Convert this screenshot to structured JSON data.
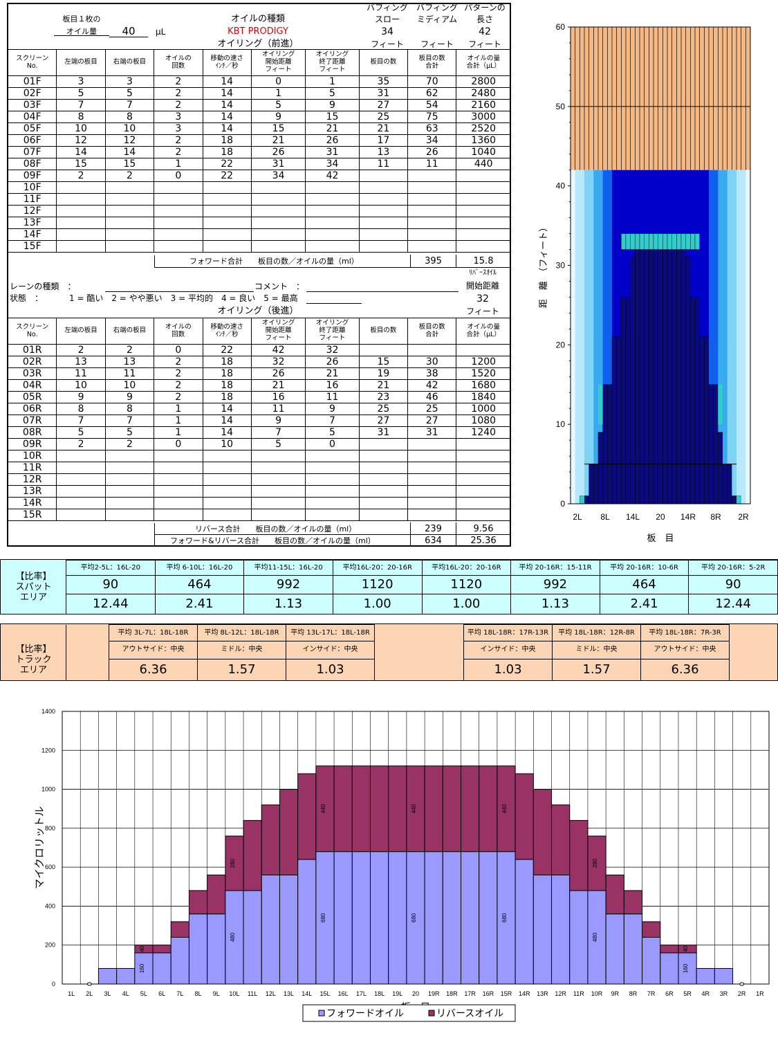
{
  "header": {
    "board_oil_label_1": "板目１枚の",
    "board_oil_label_2": "オイル量",
    "board_oil_value": "40",
    "board_oil_unit": "μL",
    "oil_type_label": "オイルの種類",
    "oil_type_value": "KBT PRODIGY",
    "forward_title": "オイリング（前進）",
    "buff_slow_1": "バフィング",
    "buff_slow_2": "スロー",
    "buff_slow_value": "34",
    "buff_slow_unit": "フィート",
    "buff_med_1": "バフィング",
    "buff_med_2": "ミディアム",
    "buff_med_unit": "フィート",
    "pat_len_1": "パターンの",
    "pat_len_2": "長さ",
    "pat_len_value": "42",
    "pat_len_unit": "フィート"
  },
  "col_headers": [
    "スクリーン No.",
    "左端の板目",
    "右端の板目",
    "オイルの 回数",
    "移動の速さ ｲﾝﾁ／秒",
    "オイリング 開始距離 フィート",
    "オイリング 終了距離 フィート",
    "板目の数",
    "板目の数 合計",
    "オイルの量 合計（μL）"
  ],
  "forward_rows": [
    [
      "01F",
      "3",
      "3",
      "2",
      "14",
      "0",
      "1",
      "35",
      "70",
      "2800"
    ],
    [
      "02F",
      "5",
      "5",
      "2",
      "14",
      "1",
      "5",
      "31",
      "62",
      "2480"
    ],
    [
      "03F",
      "7",
      "7",
      "2",
      "14",
      "5",
      "9",
      "27",
      "54",
      "2160"
    ],
    [
      "04F",
      "8",
      "8",
      "3",
      "14",
      "9",
      "15",
      "25",
      "75",
      "3000"
    ],
    [
      "05F",
      "10",
      "10",
      "3",
      "14",
      "15",
      "21",
      "21",
      "63",
      "2520"
    ],
    [
      "06F",
      "12",
      "12",
      "2",
      "18",
      "21",
      "26",
      "17",
      "34",
      "1360"
    ],
    [
      "07F",
      "14",
      "14",
      "2",
      "18",
      "26",
      "31",
      "13",
      "26",
      "1040"
    ],
    [
      "08F",
      "15",
      "15",
      "1",
      "22",
      "31",
      "34",
      "11",
      "11",
      "440"
    ],
    [
      "09F",
      "2",
      "2",
      "0",
      "22",
      "34",
      "42",
      "",
      "",
      ""
    ],
    [
      "10F",
      "",
      "",
      "",
      "",
      "",
      "",
      "",
      "",
      ""
    ],
    [
      "11F",
      "",
      "",
      "",
      "",
      "",
      "",
      "",
      "",
      ""
    ],
    [
      "12F",
      "",
      "",
      "",
      "",
      "",
      "",
      "",
      "",
      ""
    ],
    [
      "13F",
      "",
      "",
      "",
      "",
      "",
      "",
      "",
      "",
      ""
    ],
    [
      "14F",
      "",
      "",
      "",
      "",
      "",
      "",
      "",
      "",
      ""
    ],
    [
      "15F",
      "",
      "",
      "",
      "",
      "",
      "",
      "",
      "",
      ""
    ]
  ],
  "forward_total": {
    "label": "フォワード合計　　板目の数／オイルの量（ml）",
    "boards": "395",
    "oil": "15.8"
  },
  "middle": {
    "reverse_start_1": "ﾘﾊﾞｰｽｵｲﾙ",
    "reverse_start_2": "開始距離",
    "reverse_start_value": "32",
    "reverse_start_unit": "フィート",
    "lane_type_label": "レーンの種類　：",
    "comment_label": "コメント　：",
    "condition_label": "状態　：",
    "condition_scale": "1 = 酷い　2 = やや悪い　3 = 平均的　4 = 良い　5 = 最高",
    "reverse_title": "オイリング（後進）"
  },
  "reverse_rows": [
    [
      "01R",
      "2",
      "2",
      "0",
      "22",
      "42",
      "32",
      "",
      "",
      ""
    ],
    [
      "02R",
      "13",
      "13",
      "2",
      "18",
      "32",
      "26",
      "15",
      "30",
      "1200"
    ],
    [
      "03R",
      "11",
      "11",
      "2",
      "18",
      "26",
      "21",
      "19",
      "38",
      "1520"
    ],
    [
      "04R",
      "10",
      "10",
      "2",
      "18",
      "21",
      "16",
      "21",
      "42",
      "1680"
    ],
    [
      "05R",
      "9",
      "9",
      "2",
      "18",
      "16",
      "11",
      "23",
      "46",
      "1840"
    ],
    [
      "06R",
      "8",
      "8",
      "1",
      "14",
      "11",
      "9",
      "25",
      "25",
      "1000"
    ],
    [
      "07R",
      "7",
      "7",
      "1",
      "14",
      "9",
      "7",
      "27",
      "27",
      "1080"
    ],
    [
      "08R",
      "5",
      "5",
      "1",
      "14",
      "7",
      "5",
      "31",
      "31",
      "1240"
    ],
    [
      "09R",
      "2",
      "2",
      "0",
      "10",
      "5",
      "0",
      "",
      "",
      ""
    ],
    [
      "10R",
      "",
      "",
      "",
      "",
      "",
      "",
      "",
      "",
      ""
    ],
    [
      "11R",
      "",
      "",
      "",
      "",
      "",
      "",
      "",
      "",
      ""
    ],
    [
      "12R",
      "",
      "",
      "",
      "",
      "",
      "",
      "",
      "",
      ""
    ],
    [
      "13R",
      "",
      "",
      "",
      "",
      "",
      "",
      "",
      "",
      ""
    ],
    [
      "14R",
      "",
      "",
      "",
      "",
      "",
      "",
      "",
      "",
      ""
    ],
    [
      "15R",
      "",
      "",
      "",
      "",
      "",
      "",
      "",
      "",
      ""
    ]
  ],
  "reverse_total": {
    "label": "リバース合計　　板目の数／オイルの量（ml）",
    "boards": "239",
    "oil": "9.56"
  },
  "grand_total": {
    "label": "フォワード&リバース合計　　板目の数／オイルの量（ml）",
    "boards": "634",
    "oil": "25.36"
  },
  "spot": {
    "label_1": "【比率】",
    "label_2": "スパット",
    "label_3": "エリア",
    "headers": [
      "平均2-5L：16L-20",
      "平均 6-10L：16L-20",
      "平均11-15L：16L-20",
      "平均16L-20：20-16R",
      "平均16L-20：20-16R",
      "平均 20-16R：15-11R",
      "平均 20-16R：10-6R",
      "平均 20-16R：5-2R"
    ],
    "sums": [
      "90",
      "464",
      "992",
      "1120",
      "1120",
      "992",
      "464",
      "90"
    ],
    "ratios": [
      "12.44",
      "2.41",
      "1.13",
      "1.00",
      "1.00",
      "1.13",
      "2.41",
      "12.44"
    ]
  },
  "track": {
    "label_1": "【比率】",
    "label_2": "トラック",
    "label_3": "エリア",
    "headers_left": [
      "平均 3L-7L：18L-18R",
      "平均 8L-12L：18L-18R",
      "平均 13L-17L：18L-18R"
    ],
    "headers_right": [
      "平均 18L-18R：17R-13R",
      "平均 18L-18R：12R-8R",
      "平均 18L-18R：7R-3R"
    ],
    "sub_left": [
      "アウトサイド：中央",
      "ミドル：中央",
      "インサイド：中央"
    ],
    "sub_right": [
      "インサイド：中央",
      "ミドル：中央",
      "アウトサイド：中央"
    ],
    "ratios_left": [
      "6.36",
      "1.57",
      "1.03"
    ],
    "ratios_right": [
      "1.03",
      "1.57",
      "6.36"
    ]
  },
  "chart_data": [
    {
      "type": "heatmap",
      "ylabel": "距　離　（フィート）",
      "xlabel": "板　目",
      "ylim": [
        0,
        60
      ],
      "y_ticks": [
        "0",
        "10",
        "20",
        "30",
        "40",
        "50",
        "60"
      ],
      "x_ticks": [
        "2L",
        "8L",
        "14L",
        "20",
        "14R",
        "8R",
        "2R"
      ],
      "pattern_length_ft": 42,
      "buff_ft": 34,
      "colors": {
        "lane": "#f4b886",
        "oil_dark": "#000066",
        "oil_mid": "#0000ff",
        "oil_light": "#66ccff",
        "buff": "#33cccc"
      }
    },
    {
      "type": "bar",
      "title": "",
      "ylabel": "マイクロリットル",
      "xlabel": "板　目",
      "ylim": [
        0,
        1400
      ],
      "y_ticks": [
        "0",
        "200",
        "400",
        "600",
        "800",
        "1000",
        "1200",
        "1400"
      ],
      "categories": [
        "1L",
        "2L",
        "3L",
        "4L",
        "5L",
        "6L",
        "7L",
        "8L",
        "9L",
        "10L",
        "11L",
        "12L",
        "13L",
        "14L",
        "15L",
        "16L",
        "17L",
        "18L",
        "19L",
        "20",
        "19R",
        "18R",
        "17R",
        "16R",
        "15R",
        "14R",
        "13R",
        "12R",
        "11R",
        "10R",
        "9R",
        "8R",
        "7R",
        "6R",
        "5R",
        "4R",
        "3R",
        "2R",
        "1R"
      ],
      "series": [
        {
          "name": "フォワードオイル",
          "color": "#9999ff",
          "values": [
            0,
            0,
            80,
            80,
            160,
            160,
            240,
            360,
            360,
            480,
            480,
            560,
            560,
            640,
            680,
            680,
            680,
            680,
            680,
            680,
            680,
            680,
            680,
            680,
            680,
            640,
            560,
            560,
            480,
            480,
            360,
            360,
            240,
            160,
            160,
            80,
            80,
            0,
            0
          ]
        },
        {
          "name": "リバースオイル",
          "color": "#993366",
          "values": [
            0,
            0,
            0,
            0,
            40,
            40,
            80,
            120,
            200,
            280,
            360,
            360,
            440,
            440,
            440,
            440,
            440,
            440,
            440,
            440,
            440,
            440,
            440,
            440,
            440,
            440,
            440,
            360,
            360,
            280,
            200,
            120,
            80,
            40,
            40,
            0,
            0,
            0,
            0
          ]
        }
      ],
      "data_labels": [
        {
          "i": 4,
          "s": 0,
          "t": "160"
        },
        {
          "i": 4,
          "s": 1,
          "t": "40"
        },
        {
          "i": 9,
          "s": 0,
          "t": "480"
        },
        {
          "i": 9,
          "s": 1,
          "t": "280"
        },
        {
          "i": 14,
          "s": 0,
          "t": "680"
        },
        {
          "i": 14,
          "s": 1,
          "t": "440"
        },
        {
          "i": 19,
          "s": 0,
          "t": "680"
        },
        {
          "i": 19,
          "s": 1,
          "t": "440"
        },
        {
          "i": 24,
          "s": 0,
          "t": "680"
        },
        {
          "i": 24,
          "s": 1,
          "t": "440"
        },
        {
          "i": 29,
          "s": 0,
          "t": "480"
        },
        {
          "i": 29,
          "s": 1,
          "t": "280"
        },
        {
          "i": 34,
          "s": 0,
          "t": "160"
        },
        {
          "i": 34,
          "s": 1,
          "t": "40"
        }
      ],
      "zero_markers": [
        "2L",
        "2R"
      ]
    }
  ]
}
